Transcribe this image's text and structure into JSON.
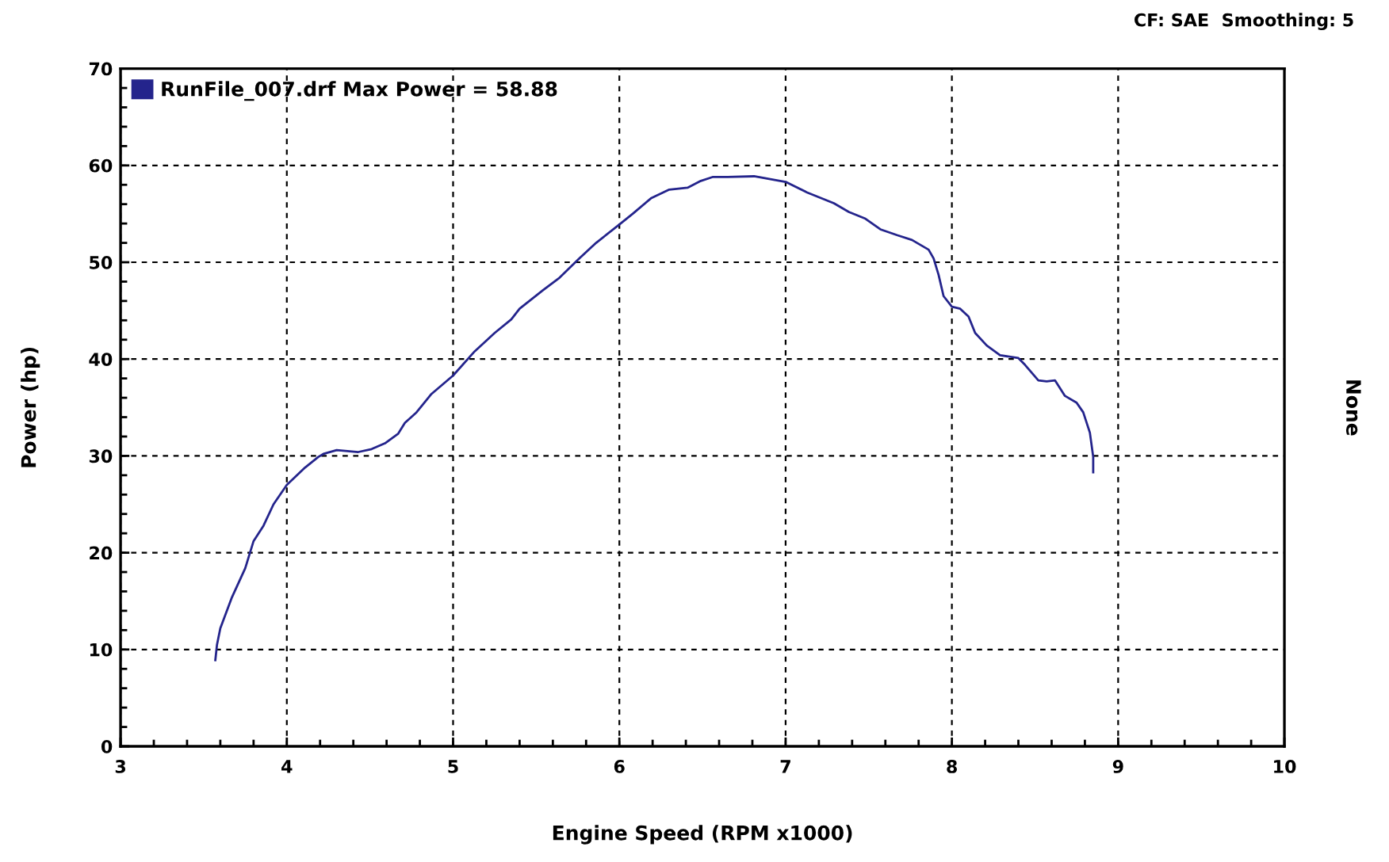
{
  "chart_data": {
    "type": "line",
    "annotations": [
      "CF: SAE  Smoothing: 5"
    ],
    "xlabel": "Engine Speed (RPM x1000)",
    "ylabel": "Power (hp)",
    "y2label": "None",
    "x": [
      3.57,
      3.58,
      3.6,
      3.67,
      3.75,
      3.8,
      3.86,
      3.92,
      4.0,
      4.11,
      4.19,
      4.22,
      4.3,
      4.43,
      4.51,
      4.59,
      4.67,
      4.71,
      4.78,
      4.87,
      5.0,
      5.13,
      5.25,
      5.35,
      5.4,
      5.54,
      5.64,
      5.76,
      5.86,
      6.0,
      6.08,
      6.19,
      6.3,
      6.41,
      6.49,
      6.56,
      6.65,
      6.81,
      7.0,
      7.13,
      7.29,
      7.38,
      7.48,
      7.57,
      7.67,
      7.76,
      7.86,
      7.89,
      7.92,
      7.95,
      8.0,
      8.05,
      8.1,
      8.14,
      8.21,
      8.29,
      8.4,
      8.44,
      8.52,
      8.57,
      8.62,
      8.68,
      8.75,
      8.79,
      8.83,
      8.85,
      8.85
    ],
    "series": [
      {
        "name": "RunFile_007.drf Max Power = 58.88",
        "color": "#24248c",
        "values": [
          8.9,
          10.5,
          12.2,
          15.4,
          18.4,
          21.2,
          22.8,
          25.0,
          27.0,
          28.8,
          29.9,
          30.2,
          30.6,
          30.4,
          30.7,
          31.3,
          32.3,
          33.4,
          34.5,
          36.4,
          38.3,
          40.8,
          42.7,
          44.1,
          45.2,
          47.1,
          48.4,
          50.4,
          52.0,
          53.9,
          55.0,
          56.6,
          57.5,
          57.7,
          58.4,
          58.8,
          58.8,
          58.88,
          58.3,
          57.2,
          56.1,
          55.2,
          54.5,
          53.4,
          52.8,
          52.3,
          51.3,
          50.4,
          48.7,
          46.5,
          45.4,
          45.2,
          44.4,
          42.7,
          41.4,
          40.4,
          40.1,
          39.4,
          37.8,
          37.7,
          37.8,
          36.2,
          35.5,
          34.5,
          32.4,
          29.9,
          28.3
        ]
      }
    ],
    "xlim": [
      3,
      10
    ],
    "ylim": [
      0,
      70
    ],
    "xticks": [
      3,
      {
        "value": 3.2,
        "label": null
      },
      {
        "value": 3.4,
        "label": null
      },
      {
        "value": 3.6,
        "label": null
      },
      {
        "value": 3.8,
        "label": null
      },
      4,
      {
        "value": 4.2,
        "label": null
      },
      {
        "value": 4.4,
        "label": null
      },
      {
        "value": 4.6,
        "label": null
      },
      {
        "value": 4.8,
        "label": null
      },
      5,
      {
        "value": 5.2,
        "label": null
      },
      {
        "value": 5.4,
        "label": null
      },
      {
        "value": 5.6,
        "label": null
      },
      {
        "value": 5.8,
        "label": null
      },
      6,
      {
        "value": 6.2,
        "label": null
      },
      {
        "value": 6.4,
        "label": null
      },
      {
        "value": 6.6,
        "label": null
      },
      {
        "value": 6.8,
        "label": null
      },
      7,
      {
        "value": 7.2,
        "label": null
      },
      {
        "value": 7.4,
        "label": null
      },
      {
        "value": 7.6,
        "label": null
      },
      {
        "value": 7.8,
        "label": null
      },
      8,
      {
        "value": 8.2,
        "label": null
      },
      {
        "value": 8.4,
        "label": null
      },
      {
        "value": 8.6,
        "label": null
      },
      {
        "value": 8.8,
        "label": null
      },
      9,
      {
        "value": 9.2,
        "label": null
      },
      {
        "value": 9.4,
        "label": null
      },
      {
        "value": 9.6,
        "label": null
      },
      {
        "value": 9.8,
        "label": null
      },
      10
    ],
    "yticks": [
      0,
      {
        "value": 2,
        "label": null
      },
      {
        "value": 4,
        "label": null
      },
      {
        "value": 6,
        "label": null
      },
      {
        "value": 8,
        "label": null
      },
      10,
      {
        "value": 12,
        "label": null
      },
      {
        "value": 14,
        "label": null
      },
      {
        "value": 16,
        "label": null
      },
      {
        "value": 18,
        "label": null
      },
      20,
      {
        "value": 22,
        "label": null
      },
      {
        "value": 24,
        "label": null
      },
      {
        "value": 26,
        "label": null
      },
      {
        "value": 28,
        "label": null
      },
      30,
      {
        "value": 32,
        "label": null
      },
      {
        "value": 34,
        "label": null
      },
      {
        "value": 36,
        "label": null
      },
      {
        "value": 38,
        "label": null
      },
      40,
      {
        "value": 42,
        "label": null
      },
      {
        "value": 44,
        "label": null
      },
      {
        "value": 46,
        "label": null
      },
      {
        "value": 48,
        "label": null
      },
      50,
      {
        "value": 52,
        "label": null
      },
      {
        "value": 54,
        "label": null
      },
      {
        "value": 56,
        "label": null
      },
      {
        "value": 58,
        "label": null
      },
      60,
      {
        "value": 62,
        "label": null
      },
      {
        "value": 64,
        "label": null
      },
      {
        "value": 66,
        "label": null
      },
      {
        "value": 68,
        "label": null
      },
      70
    ],
    "grid": true,
    "legend": "top left"
  }
}
